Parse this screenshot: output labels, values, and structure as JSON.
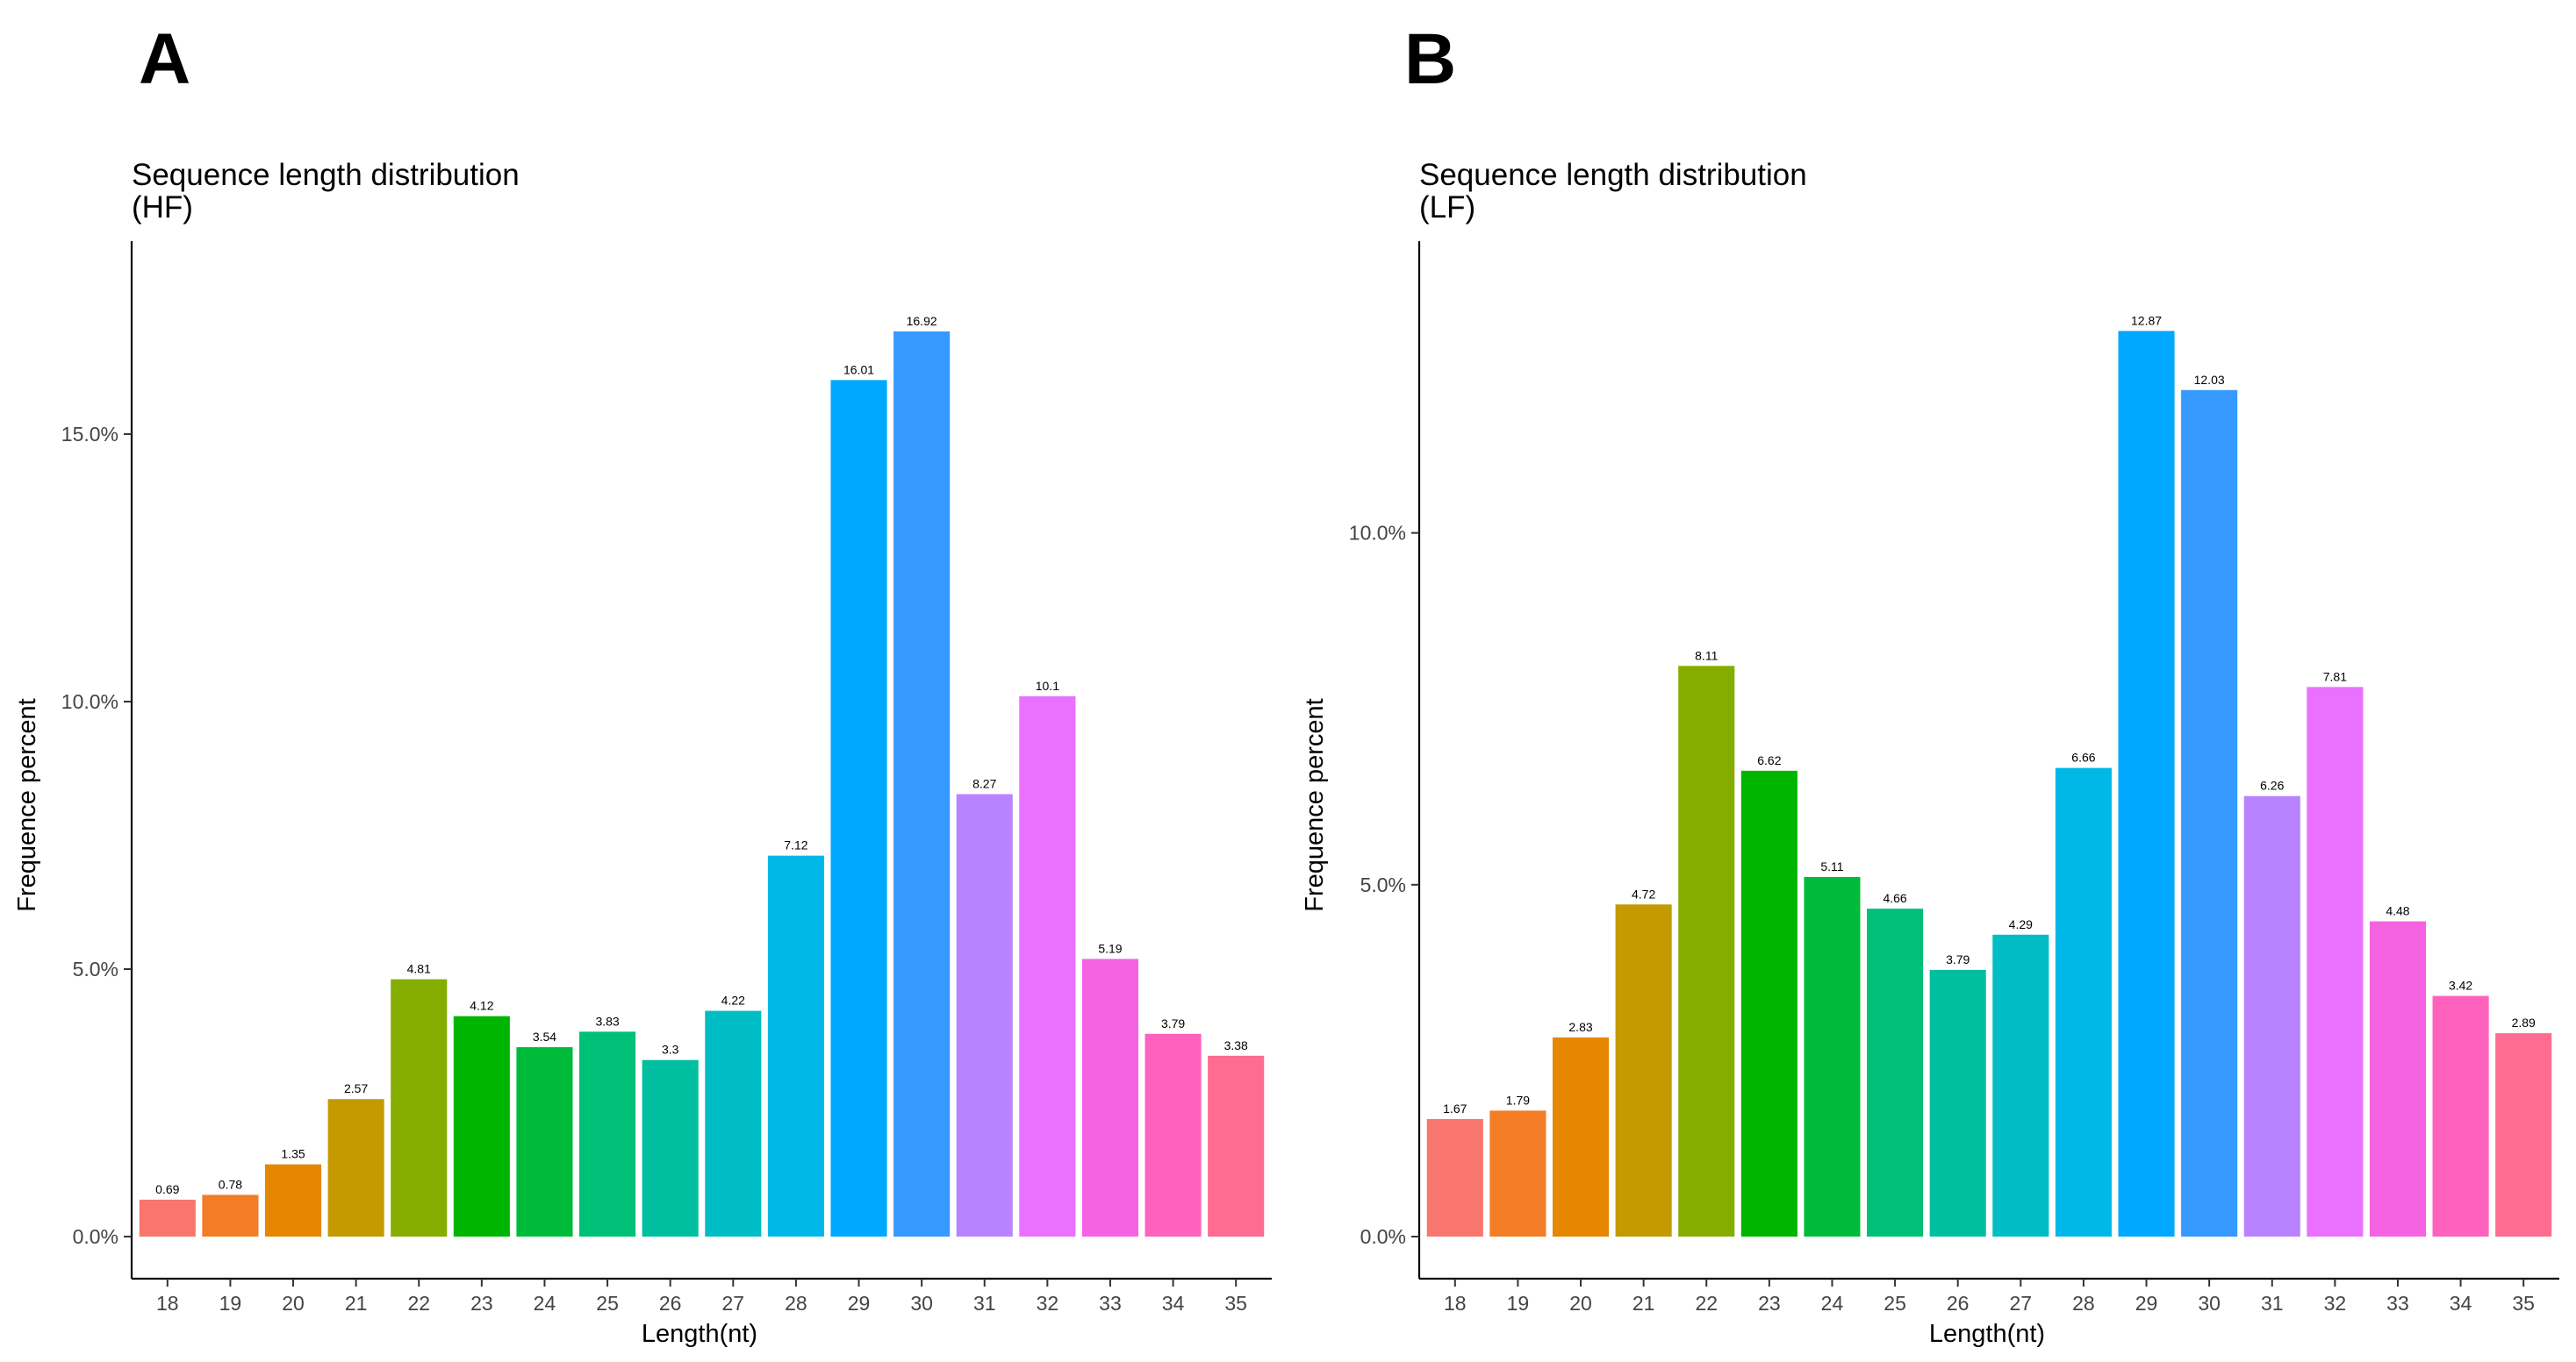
{
  "panels": [
    {
      "letter": "A",
      "title_line1": "Sequence length distribution",
      "title_line2": "(HF)"
    },
    {
      "letter": "B",
      "title_line1": "Sequence length distribution",
      "title_line2": "(LF)"
    }
  ],
  "chart_data": [
    {
      "type": "bar",
      "title": "Sequence length distribution (HF)",
      "xlabel": "Length(nt)",
      "ylabel": "Frequence percent",
      "categories": [
        "18",
        "19",
        "20",
        "21",
        "22",
        "23",
        "24",
        "25",
        "26",
        "27",
        "28",
        "29",
        "30",
        "31",
        "32",
        "33",
        "34",
        "35"
      ],
      "values": [
        0.69,
        0.78,
        1.35,
        2.57,
        4.81,
        4.12,
        3.54,
        3.83,
        3.3,
        4.22,
        7.12,
        16.01,
        16.92,
        8.27,
        10.1,
        5.19,
        3.79,
        3.38
      ],
      "data_labels": [
        "0.69",
        "0.78",
        "1.35",
        "2.57",
        "4.81",
        "4.12",
        "3.54",
        "3.83",
        "3.3",
        "4.22",
        "7.12",
        "16.01",
        "16.92",
        "8.27",
        "10.1",
        "5.19",
        "3.79",
        "3.38"
      ],
      "yticks": [
        0,
        5,
        10,
        15
      ],
      "ytick_labels": [
        "0.0%",
        "5.0%",
        "10.0%",
        "15.0%"
      ],
      "ylim": [
        0,
        17.77
      ],
      "grid": false,
      "legend": "none",
      "colors": [
        "#F8766D",
        "#F27D26",
        "#E58700",
        "#C49A00",
        "#85AD00",
        "#00B500",
        "#00BB3A",
        "#00C078",
        "#00BFA0",
        "#00BCC5",
        "#00B8E7",
        "#00A9FF",
        "#3699FF",
        "#B983FF",
        "#EA70FF",
        "#F563E3",
        "#FF62BC",
        "#FF6C91"
      ]
    },
    {
      "type": "bar",
      "title": "Sequence length distribution (LF)",
      "xlabel": "Length(nt)",
      "ylabel": "Frequence percent",
      "categories": [
        "18",
        "19",
        "20",
        "21",
        "22",
        "23",
        "24",
        "25",
        "26",
        "27",
        "28",
        "29",
        "30",
        "31",
        "32",
        "33",
        "34",
        "35"
      ],
      "values": [
        1.67,
        1.79,
        2.83,
        4.72,
        8.11,
        6.62,
        5.11,
        4.66,
        3.79,
        4.29,
        6.66,
        12.87,
        12.03,
        6.26,
        7.81,
        4.48,
        3.42,
        2.89
      ],
      "data_labels": [
        "1.67",
        "1.79",
        "2.83",
        "4.72",
        "8.11",
        "6.62",
        "5.11",
        "4.66",
        "3.79",
        "4.29",
        "6.66",
        "12.87",
        "12.03",
        "6.26",
        "7.81",
        "4.48",
        "3.42",
        "2.89"
      ],
      "yticks": [
        0,
        5,
        10
      ],
      "ytick_labels": [
        "0.0%",
        "5.0%",
        "10.0%"
      ],
      "ylim": [
        0,
        13.51
      ],
      "grid": false,
      "legend": "none",
      "colors": [
        "#F8766D",
        "#F27D26",
        "#E58700",
        "#C49A00",
        "#85AD00",
        "#00B500",
        "#00BB3A",
        "#00C078",
        "#00BFA0",
        "#00BCC5",
        "#00B8E7",
        "#00A9FF",
        "#3699FF",
        "#B983FF",
        "#EA70FF",
        "#F563E3",
        "#FF62BC",
        "#FF6C91"
      ]
    }
  ]
}
